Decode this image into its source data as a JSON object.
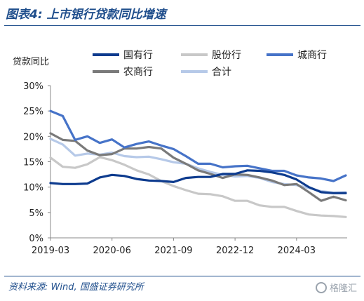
{
  "title": "图表4: 上市银行贷款同比增速",
  "source": "资料来源: Wind, 国盛证券研究所",
  "watermark": "格隆汇",
  "chart_data": {
    "type": "line",
    "ylabel": "贷款同比",
    "ylim": [
      0,
      30
    ],
    "y_ticks": [
      "0%",
      "5%",
      "10%",
      "15%",
      "20%",
      "25%",
      "30%"
    ],
    "x_tick_labels": [
      "2019-03",
      "2020-06",
      "2021-09",
      "2022-12",
      "2024-03"
    ],
    "x": [
      "2019-03",
      "2019-06",
      "2019-09",
      "2019-12",
      "2020-03",
      "2020-06",
      "2020-09",
      "2020-12",
      "2021-03",
      "2021-06",
      "2021-09",
      "2021-12",
      "2022-03",
      "2022-06",
      "2022-09",
      "2022-12",
      "2023-03",
      "2023-06",
      "2023-09",
      "2023-12",
      "2024-03",
      "2024-06",
      "2024-09",
      "2024-12",
      "2025-03"
    ],
    "legend_position": "top",
    "series": [
      {
        "name": "国有行",
        "color": "#0d3b8e",
        "values": [
          10.8,
          10.6,
          10.6,
          10.7,
          11.9,
          12.4,
          12.2,
          11.6,
          11.3,
          11.2,
          11.0,
          11.8,
          12.0,
          12.0,
          12.6,
          12.6,
          13.3,
          13.2,
          12.9,
          12.4,
          11.5,
          10.0,
          9.0,
          8.8,
          8.8
        ]
      },
      {
        "name": "股份行",
        "color": "#c8c8c8",
        "values": [
          15.8,
          14.0,
          13.8,
          14.5,
          15.9,
          15.3,
          14.4,
          13.3,
          12.5,
          11.2,
          10.2,
          9.4,
          8.7,
          8.6,
          8.2,
          7.3,
          7.3,
          6.4,
          6.1,
          6.1,
          5.3,
          4.6,
          4.4,
          4.3,
          4.1
        ]
      },
      {
        "name": "城商行",
        "color": "#4673c8",
        "values": [
          25.0,
          24.0,
          19.3,
          20.0,
          18.7,
          19.4,
          17.8,
          18.5,
          19.0,
          18.2,
          17.5,
          16.1,
          14.6,
          14.6,
          13.9,
          14.1,
          14.2,
          13.7,
          13.2,
          13.2,
          12.3,
          11.9,
          11.7,
          11.2,
          12.3
        ]
      },
      {
        "name": "农商行",
        "color": "#7a7a7a",
        "values": [
          20.6,
          19.3,
          19.1,
          17.2,
          16.3,
          16.5,
          17.6,
          17.6,
          17.9,
          17.6,
          15.8,
          14.6,
          13.3,
          12.6,
          11.8,
          12.5,
          12.4,
          11.9,
          11.3,
          10.4,
          10.6,
          9.0,
          7.3,
          8.1,
          7.4
        ]
      },
      {
        "name": "合计",
        "color": "#b6c9e8",
        "values": [
          19.5,
          18.4,
          16.2,
          16.6,
          16.4,
          16.8,
          16.1,
          15.9,
          16.0,
          15.5,
          14.9,
          14.6,
          13.7,
          13.0,
          12.4,
          12.1,
          12.2,
          11.8,
          11.0,
          10.6,
          10.4,
          9.8,
          9.2,
          8.9,
          9.0
        ]
      }
    ]
  }
}
